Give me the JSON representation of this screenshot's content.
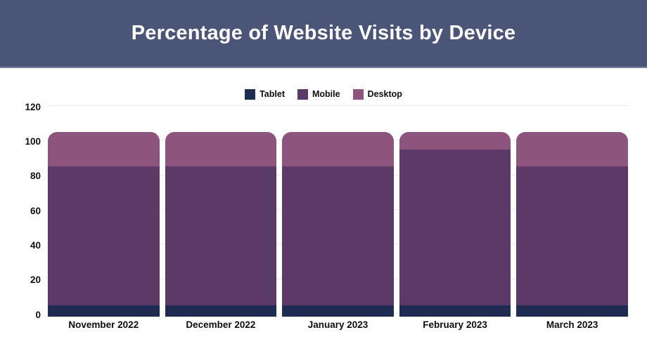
{
  "header": {
    "title": "Percentage of Website Visits by Device",
    "background": "#4a5578",
    "text_color": "#ffffff"
  },
  "chart_data": {
    "type": "bar",
    "stacked": true,
    "title": "Percentage of Website Visits by Device",
    "categories": [
      "November 2022",
      "December 2022",
      "January 2023",
      "February 2023",
      "March 2023"
    ],
    "series": [
      {
        "name": "Tablet",
        "color": "#202b52",
        "values": [
          5,
          5,
          5,
          5,
          5
        ]
      },
      {
        "name": "Mobile",
        "color": "#5b3a68",
        "values": [
          80,
          80,
          80,
          90,
          80
        ]
      },
      {
        "name": "Desktop",
        "color": "#8d547e",
        "values": [
          20,
          20,
          20,
          10,
          20
        ]
      }
    ],
    "totals": [
      105,
      105,
      105,
      105,
      105
    ],
    "xlabel": "",
    "ylabel": "",
    "ylim": [
      0,
      120
    ],
    "yticks": [
      0,
      20,
      40,
      60,
      80,
      100,
      120
    ],
    "grid": "horizontal",
    "gridline_color": "#ececec",
    "legend_position": "top-center",
    "text_color": "#111111"
  }
}
